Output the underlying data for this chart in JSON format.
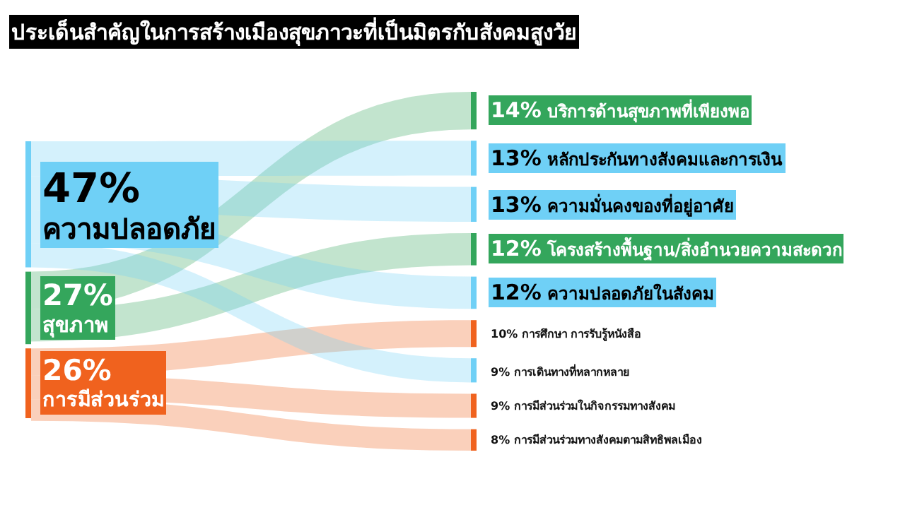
{
  "chart_data": {
    "type": "other",
    "title": "ประเด็นสำคัญในการสร้างเมืองสุขภาวะที่เป็นมิตรกับสังคมสูงวัย",
    "categories": [
      "ความปลอดภัย",
      "สุขภาพ",
      "การมีส่วนร่วม",
      "บริการด้านสุขภาพที่เพียงพอ",
      "หลักประกันทางสังคมและการเงิน",
      "ความมั่นคงของที่อยู่อาศัย",
      "โครงสร้างพื้นฐาน/สิ่งอำนวยความสะดวก",
      "ความปลอดภัยในสังคม",
      "การศึกษา การรับรู้หนังสือ",
      "การเดินทางที่หลากหลาย",
      "การมีส่วนร่วมในกิจกรรมทางสังคม",
      "การมีส่วนร่วมทางสังคมตามสิทธิพลเมือง"
    ],
    "values": [
      47,
      27,
      26,
      14,
      13,
      13,
      12,
      12,
      10,
      9,
      9,
      8
    ],
    "value_labels": [
      "47%",
      "27%",
      "26%",
      "14%",
      "13%",
      "13%",
      "12%",
      "12%",
      "10%",
      "9%",
      "9%",
      "8%"
    ],
    "colors": [
      "#6fd0f6",
      "#34a65c",
      "#f0621e",
      "#34a65c",
      "#6fd0f6",
      "#6fd0f6",
      "#34a65c",
      "#6fd0f6",
      "#f0621e",
      "#6fd0f6",
      "#f0621e",
      "#f0621e"
    ]
  }
}
